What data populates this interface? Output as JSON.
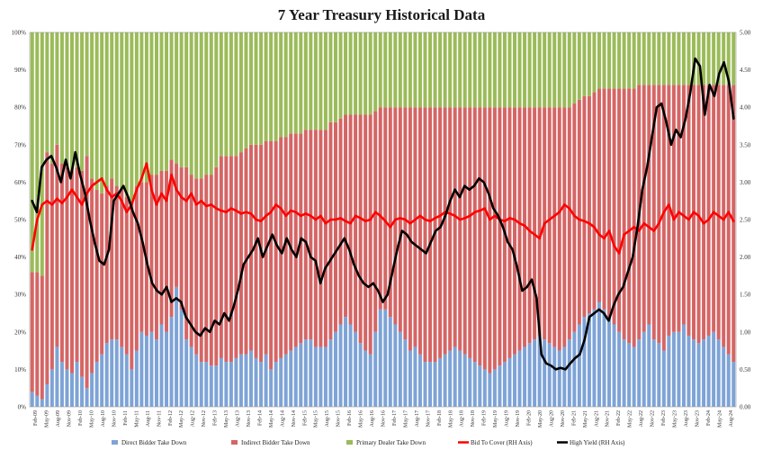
{
  "chart_data": {
    "type": "bar",
    "title": "7 Year Treasury Historical Data",
    "subtitle": "",
    "xlabel": "",
    "ylabel_left": "",
    "ylabel_right": "",
    "ylim_left": [
      0,
      100
    ],
    "ylim_right": [
      0,
      5
    ],
    "stacked": true,
    "grid": false,
    "legend_position": "bottom",
    "y_ticks_left": [
      "0%",
      "10%",
      "20%",
      "30%",
      "40%",
      "50%",
      "60%",
      "70%",
      "80%",
      "90%",
      "100%"
    ],
    "y_ticks_right": [
      "0.00",
      "0.50",
      "1.00",
      "1.50",
      "2.00",
      "2.50",
      "3.00",
      "3.50",
      "4.00",
      "4.50",
      "5.00"
    ],
    "x_tick_labels": [
      "Feb-09",
      "May-09",
      "Aug-09",
      "Nov-09",
      "Feb-10",
      "May-10",
      "Aug-10",
      "Nov-10",
      "Feb-11",
      "May-11",
      "Aug-11",
      "Nov-11",
      "Feb-12",
      "May-12",
      "Aug-12",
      "Nov-12",
      "Feb-13",
      "May-13",
      "Aug-13",
      "Nov-13",
      "Feb-14",
      "May-14",
      "Aug-14",
      "Nov-14",
      "Feb-15",
      "May-15",
      "Aug-15",
      "Nov-15",
      "Feb-16",
      "May-16",
      "Aug-16",
      "Nov-16",
      "Feb-17",
      "May-17",
      "Aug-17",
      "Nov-17",
      "Feb-18",
      "May-18",
      "Aug-18",
      "Nov-18",
      "Feb-19",
      "May-19",
      "Aug-19",
      "Nov-19",
      "Feb-20",
      "May-20",
      "Aug-20",
      "Nov-20",
      "Feb-21",
      "May-21",
      "Aug-21",
      "Nov-21",
      "Feb-22",
      "May-22",
      "Aug-22",
      "Nov-22",
      "Feb-23",
      "May-23",
      "Aug-23",
      "Nov-23",
      "Feb-24",
      "May-24",
      "Aug-24"
    ],
    "series_names": [
      "Direct Bidder Take Down",
      "Indirect Bidder Take Down",
      "Primary Dealer Take Down",
      "Bid To Cover (RH Axis)",
      "High Yield (RH Axis)"
    ],
    "series": [
      {
        "name": "Direct Bidder Take Down",
        "kind": "bar",
        "color": "#7ea3d6",
        "values": [
          4,
          3,
          2,
          6,
          10,
          16,
          12,
          10,
          9,
          12,
          8,
          5,
          9,
          12,
          14,
          17,
          18,
          18,
          16,
          14,
          10,
          15,
          20,
          19,
          20,
          18,
          22,
          20,
          24,
          32,
          26,
          18,
          16,
          14,
          12,
          12,
          11,
          11,
          13,
          12,
          12,
          13,
          14,
          14,
          15,
          13,
          12,
          14,
          10,
          12,
          13,
          14,
          15,
          16,
          17,
          18,
          18,
          16,
          16,
          16,
          18,
          20,
          22,
          24,
          22,
          20,
          17,
          15,
          14,
          20,
          26,
          26,
          24,
          22,
          20,
          18,
          15,
          16,
          14,
          12,
          12,
          12,
          13,
          14,
          15,
          16,
          15,
          14,
          13,
          12,
          11,
          10,
          9,
          10,
          11,
          12,
          13,
          14,
          15,
          16,
          17,
          18,
          19,
          18,
          17,
          16,
          15,
          16,
          18,
          20,
          22,
          24,
          25,
          26,
          28,
          26,
          24,
          22,
          20,
          18,
          17,
          16,
          18,
          20,
          22,
          18,
          17,
          15,
          19,
          20,
          20,
          22,
          19,
          18,
          17,
          18,
          19,
          20,
          18,
          16,
          14,
          12
        ]
      },
      {
        "name": "Indirect Bidder Take Down",
        "kind": "bar",
        "color": "#d56565",
        "values": [
          32,
          33,
          33,
          62,
          55,
          54,
          53,
          54,
          54,
          52,
          55,
          62,
          52,
          46,
          43,
          42,
          43,
          41,
          42,
          42,
          45,
          44,
          40,
          41,
          42,
          44,
          41,
          43,
          42,
          33,
          38,
          46,
          46,
          47,
          49,
          50,
          51,
          53,
          54,
          55,
          55,
          54,
          54,
          55,
          55,
          57,
          58,
          57,
          61,
          59,
          59,
          58,
          58,
          57,
          56,
          56,
          56,
          58,
          58,
          58,
          58,
          56,
          55,
          54,
          56,
          58,
          61,
          63,
          64,
          59,
          54,
          54,
          56,
          58,
          60,
          62,
          65,
          64,
          66,
          68,
          68,
          68,
          67,
          66,
          65,
          64,
          65,
          66,
          67,
          68,
          69,
          70,
          71,
          70,
          69,
          68,
          67,
          66,
          65,
          64,
          63,
          62,
          61,
          62,
          63,
          64,
          65,
          64,
          62,
          61,
          60,
          59,
          58,
          58,
          57,
          59,
          61,
          63,
          65,
          67,
          68,
          69,
          68,
          66,
          64,
          68,
          69,
          71,
          67,
          66,
          66,
          64,
          67,
          68,
          69,
          68,
          67,
          66,
          68,
          70,
          72,
          74
        ]
      },
      {
        "name": "Primary Dealer Take Down",
        "kind": "bar",
        "color": "#9bbb59",
        "values": [
          64,
          64,
          65,
          32,
          35,
          30,
          35,
          36,
          37,
          36,
          37,
          33,
          39,
          42,
          43,
          41,
          39,
          41,
          42,
          44,
          45,
          41,
          40,
          40,
          38,
          38,
          37,
          37,
          34,
          35,
          36,
          36,
          38,
          39,
          39,
          38,
          38,
          36,
          33,
          33,
          33,
          33,
          32,
          31,
          30,
          30,
          30,
          29,
          29,
          29,
          28,
          28,
          27,
          27,
          27,
          26,
          26,
          26,
          26,
          26,
          24,
          24,
          23,
          22,
          22,
          22,
          22,
          22,
          22,
          21,
          20,
          20,
          20,
          20,
          20,
          20,
          20,
          20,
          20,
          20,
          20,
          20,
          20,
          20,
          20,
          20,
          20,
          20,
          20,
          20,
          20,
          20,
          20,
          20,
          20,
          20,
          20,
          20,
          20,
          20,
          20,
          20,
          20,
          20,
          20,
          20,
          20,
          20,
          20,
          19,
          18,
          17,
          17,
          16,
          15,
          15,
          15,
          15,
          15,
          15,
          15,
          15,
          14,
          14,
          14,
          14,
          14,
          14,
          14,
          14,
          14,
          14,
          14,
          14,
          14,
          14,
          14,
          14,
          14,
          14,
          14,
          14
        ]
      },
      {
        "name": "Bid To Cover (RH Axis)",
        "kind": "line",
        "color": "#ff0000",
        "values": [
          2.1,
          2.5,
          2.7,
          2.75,
          2.7,
          2.78,
          2.72,
          2.8,
          2.9,
          2.8,
          2.7,
          2.85,
          2.95,
          3.0,
          3.05,
          2.9,
          2.8,
          2.85,
          2.75,
          2.6,
          2.7,
          2.9,
          3.05,
          3.25,
          2.9,
          2.7,
          2.85,
          2.75,
          3.1,
          2.9,
          2.8,
          2.75,
          2.85,
          2.7,
          2.75,
          2.68,
          2.7,
          2.65,
          2.62,
          2.6,
          2.65,
          2.62,
          2.58,
          2.6,
          2.58,
          2.5,
          2.48,
          2.55,
          2.6,
          2.7,
          2.65,
          2.55,
          2.62,
          2.6,
          2.55,
          2.58,
          2.55,
          2.5,
          2.55,
          2.45,
          2.5,
          2.5,
          2.52,
          2.48,
          2.45,
          2.55,
          2.52,
          2.48,
          2.5,
          2.6,
          2.55,
          2.48,
          2.4,
          2.5,
          2.52,
          2.5,
          2.45,
          2.5,
          2.55,
          2.5,
          2.48,
          2.52,
          2.55,
          2.6,
          2.58,
          2.55,
          2.5,
          2.52,
          2.55,
          2.6,
          2.62,
          2.65,
          2.5,
          2.55,
          2.5,
          2.48,
          2.52,
          2.5,
          2.45,
          2.42,
          2.35,
          2.3,
          2.25,
          2.45,
          2.5,
          2.55,
          2.6,
          2.7,
          2.65,
          2.55,
          2.5,
          2.48,
          2.45,
          2.4,
          2.3,
          2.25,
          2.35,
          2.15,
          2.05,
          2.3,
          2.35,
          2.4,
          2.35,
          2.45,
          2.4,
          2.35,
          2.45,
          2.6,
          2.7,
          2.5,
          2.6,
          2.55,
          2.5,
          2.6,
          2.55,
          2.45,
          2.5,
          2.6,
          2.55,
          2.5,
          2.6,
          2.48
        ]
      },
      {
        "name": "High Yield (RH Axis)",
        "kind": "line",
        "color": "#000000",
        "values": [
          2.75,
          2.6,
          3.2,
          3.3,
          3.35,
          3.2,
          3.0,
          3.3,
          3.05,
          3.4,
          3.1,
          2.85,
          2.5,
          2.2,
          1.95,
          1.9,
          2.1,
          2.75,
          2.85,
          2.95,
          2.8,
          2.6,
          2.45,
          2.2,
          1.9,
          1.65,
          1.55,
          1.5,
          1.6,
          1.4,
          1.45,
          1.4,
          1.2,
          1.1,
          1.0,
          0.95,
          1.05,
          1.0,
          1.15,
          1.1,
          1.25,
          1.15,
          1.35,
          1.6,
          1.9,
          2.0,
          2.1,
          2.25,
          2.0,
          2.15,
          2.3,
          2.15,
          2.05,
          2.25,
          2.1,
          2.0,
          2.25,
          2.2,
          2.0,
          1.95,
          1.65,
          1.85,
          1.95,
          2.05,
          2.15,
          2.25,
          2.1,
          1.9,
          1.75,
          1.65,
          1.6,
          1.65,
          1.55,
          1.4,
          1.5,
          1.8,
          2.1,
          2.35,
          2.3,
          2.2,
          2.15,
          2.1,
          2.05,
          2.2,
          2.35,
          2.4,
          2.55,
          2.75,
          2.9,
          2.8,
          2.95,
          2.9,
          2.95,
          3.05,
          3.0,
          2.85,
          2.65,
          2.55,
          2.4,
          2.2,
          2.1,
          1.85,
          1.55,
          1.6,
          1.7,
          1.45,
          0.7,
          0.58,
          0.55,
          0.5,
          0.52,
          0.5,
          0.58,
          0.65,
          0.7,
          0.9,
          1.2,
          1.25,
          1.3,
          1.25,
          1.15,
          1.35,
          1.5,
          1.6,
          1.8,
          2.0,
          2.4,
          2.9,
          3.2,
          3.6,
          4.0,
          4.05,
          3.8,
          3.5,
          3.7,
          3.6,
          3.85,
          4.2,
          4.65,
          4.55,
          3.9,
          4.3,
          4.15,
          4.45,
          4.6,
          4.35,
          3.85
        ]
      }
    ]
  }
}
